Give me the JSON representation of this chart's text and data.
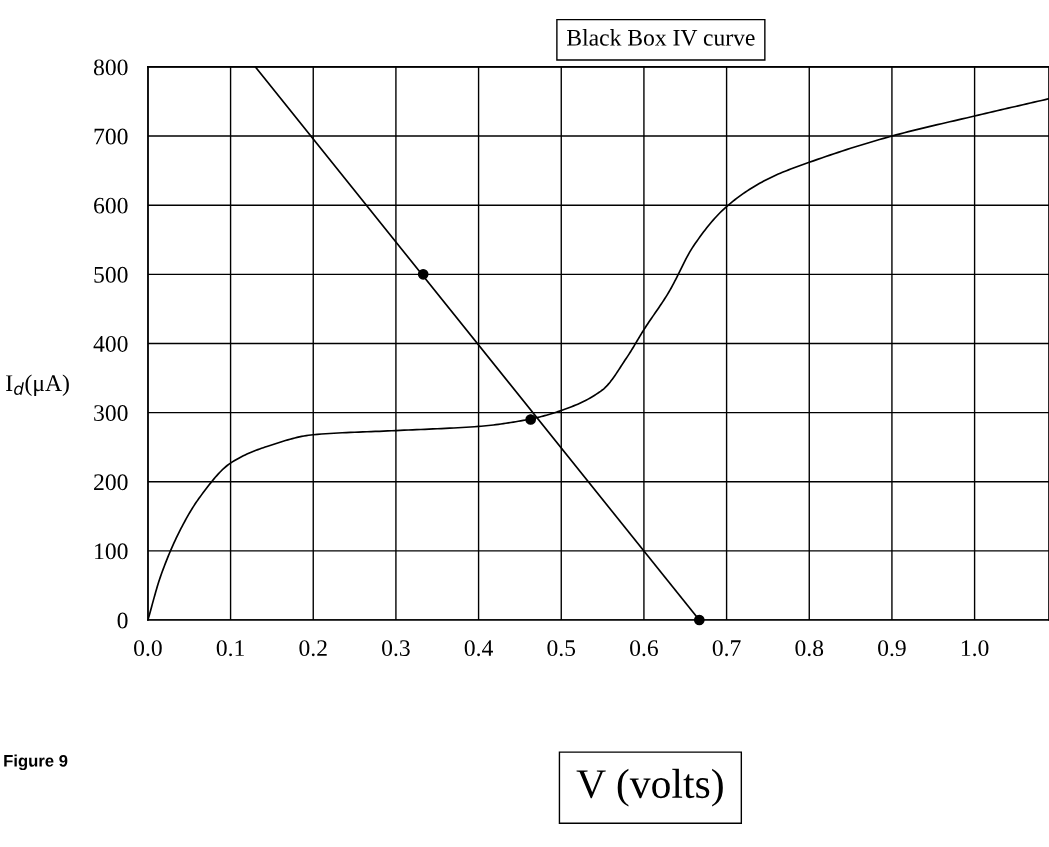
{
  "chart_data": {
    "type": "line",
    "title": "Black Box IV curve",
    "xlabel": "V (volts)",
    "ylabel": "I$_{d}$(μA)",
    "series": [
      {
        "color": "#000000",
        "x": [
          0,
          0.015,
          0.039,
          0.063,
          0.1,
          0.144,
          0.2,
          0.3,
          0.4,
          0.46,
          0.5,
          0.55,
          0.58,
          0.6,
          0.63,
          0.66,
          0.7,
          0.75,
          0.8,
          0.9,
          1.0,
          1.09
        ],
        "values": [
          0,
          62,
          130,
          178,
          227,
          251,
          268,
          274,
          280,
          290,
          303,
          333,
          381,
          420,
          474,
          541,
          598,
          638,
          662,
          700,
          729,
          754
        ]
      },
      {
        "color": "#000000",
        "x": [
          0.13,
          0.667
        ],
        "values": [
          800,
          0
        ]
      },
      {
        "type": "scatter",
        "marker": "circle",
        "color": "#000000",
        "x": [
          0.333,
          0.463,
          0.667
        ],
        "values": [
          500,
          290,
          0
        ]
      }
    ],
    "xlim": [
      0,
      1.09
    ],
    "xticks": [
      {
        "value": 0,
        "label": "0.0"
      },
      0.1,
      0.2,
      0.3,
      0.4,
      0.5,
      0.6,
      0.7,
      0.8,
      0.9,
      {
        "value": 1.0,
        "label": "1.0"
      }
    ],
    "ylim": [
      0,
      800
    ],
    "yticks": [
      0,
      100,
      200,
      300,
      400,
      500,
      600,
      700,
      800
    ],
    "grid": true,
    "marker": "none",
    "line_style": "solid",
    "annotations": [
      "Figure 9"
    ]
  }
}
